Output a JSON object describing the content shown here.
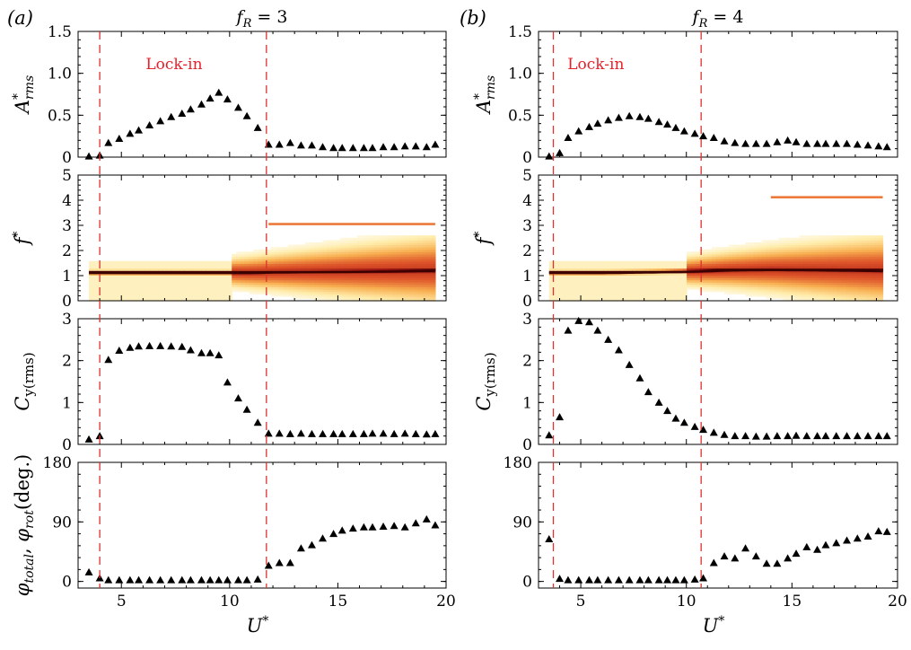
{
  "chart_data": [
    {
      "panel_label": "(a)",
      "title": "f_R = 3",
      "title_parts": {
        "var": "f",
        "sub": "R",
        "rhs": " = 3"
      },
      "xlabel": "U*",
      "xlim": [
        3,
        20
      ],
      "xticks": [
        5,
        10,
        15,
        20
      ],
      "lockin_label": "Lock-in",
      "lock_bounds": [
        4.0,
        11.7
      ],
      "line_color": "#e03030",
      "subplots": [
        {
          "type": "scatter",
          "ylabel": "A*rms",
          "ylabel_parts": {
            "base": "A",
            "sup": "*",
            "sub": "rms"
          },
          "ylim": [
            0,
            1.5
          ],
          "yticks": [
            0,
            0.5,
            1.0,
            1.5
          ],
          "ytick_labels": [
            "0",
            "0.5",
            "1.0",
            "1.5"
          ],
          "x": [
            3.5,
            4.0,
            4.4,
            4.9,
            5.4,
            5.8,
            6.3,
            6.8,
            7.3,
            7.8,
            8.2,
            8.7,
            9.1,
            9.5,
            9.9,
            10.4,
            10.8,
            11.3,
            11.8,
            12.3,
            12.8,
            13.3,
            13.8,
            14.3,
            14.8,
            15.2,
            15.7,
            16.2,
            16.6,
            17.1,
            17.6,
            18.1,
            18.6,
            19.1,
            19.5
          ],
          "y": [
            0.01,
            0.02,
            0.17,
            0.22,
            0.28,
            0.32,
            0.38,
            0.43,
            0.48,
            0.52,
            0.57,
            0.63,
            0.7,
            0.77,
            0.69,
            0.59,
            0.49,
            0.35,
            0.15,
            0.15,
            0.17,
            0.14,
            0.14,
            0.12,
            0.11,
            0.11,
            0.11,
            0.11,
            0.11,
            0.12,
            0.12,
            0.13,
            0.13,
            0.12,
            0.15
          ]
        },
        {
          "type": "heatmap",
          "ylabel": "f*",
          "ylabel_parts": {
            "base": "f",
            "sup": "*"
          },
          "ylim": [
            0,
            5
          ],
          "yticks": [
            0,
            1,
            2,
            3,
            4,
            5
          ],
          "ytick_labels": [
            "0",
            "1",
            "2",
            "3",
            "4",
            "5"
          ],
          "x_start": 3.5,
          "x_end": 19.5,
          "fundamental_freq": [
            1.1,
            1.1,
            1.1,
            1.1,
            1.1,
            1.12,
            1.18
          ],
          "fundamental_x": [
            3.5,
            6,
            9,
            10,
            11,
            12,
            19.5
          ],
          "harmonic_freq": 3.05,
          "harmonic_x": [
            11.8,
            19.5
          ],
          "spread_start": 10.0
        },
        {
          "type": "scatter",
          "ylabel": "Cy(rms)",
          "ylabel_parts": {
            "base": "C",
            "sub": "y(rms)"
          },
          "ylim": [
            0,
            3
          ],
          "yticks": [
            0,
            1,
            2,
            3
          ],
          "ytick_labels": [
            "0",
            "1",
            "2",
            "3"
          ],
          "x": [
            3.5,
            4.0,
            4.4,
            4.9,
            5.4,
            5.8,
            6.3,
            6.8,
            7.3,
            7.8,
            8.2,
            8.7,
            9.1,
            9.5,
            9.9,
            10.4,
            10.8,
            11.3,
            11.8,
            12.3,
            12.8,
            13.3,
            13.8,
            14.3,
            14.8,
            15.2,
            15.7,
            16.2,
            16.6,
            17.1,
            17.6,
            18.1,
            18.6,
            19.1,
            19.5
          ],
          "y": [
            0.12,
            0.2,
            2.02,
            2.24,
            2.31,
            2.34,
            2.35,
            2.35,
            2.34,
            2.33,
            2.25,
            2.18,
            2.18,
            2.13,
            1.48,
            1.1,
            0.83,
            0.52,
            0.26,
            0.26,
            0.25,
            0.26,
            0.25,
            0.25,
            0.25,
            0.25,
            0.25,
            0.25,
            0.26,
            0.26,
            0.25,
            0.26,
            0.25,
            0.24,
            0.25
          ]
        },
        {
          "type": "scatter",
          "ylabel": "φtotal, φrot(deg.)",
          "ylabel_parts": {
            "a": "φ",
            "a_sub": "total",
            "b": "φ",
            "b_sub": "rot",
            "tail": "(deg.)"
          },
          "ylim": [
            -10,
            180
          ],
          "yticks": [
            0,
            90,
            180
          ],
          "ytick_labels": [
            "0",
            "90",
            "180"
          ],
          "x": [
            3.5,
            4.0,
            4.4,
            4.9,
            5.4,
            5.8,
            6.3,
            6.8,
            7.3,
            7.8,
            8.2,
            8.7,
            9.1,
            9.5,
            9.9,
            10.4,
            10.8,
            11.3,
            11.8,
            12.3,
            12.8,
            13.3,
            13.8,
            14.3,
            14.8,
            15.2,
            15.7,
            16.2,
            16.6,
            17.1,
            17.6,
            18.1,
            18.6,
            19.1,
            19.5
          ],
          "y": [
            14,
            5,
            2,
            2,
            2,
            2,
            2,
            2,
            2,
            2,
            2,
            2,
            2,
            2,
            2,
            2,
            2,
            3,
            24,
            28,
            28,
            50,
            55,
            65,
            72,
            77,
            80,
            82,
            82,
            83,
            84,
            82,
            88,
            94,
            85
          ]
        }
      ]
    },
    {
      "panel_label": "(b)",
      "title": "f_R = 4",
      "title_parts": {
        "var": "f",
        "sub": "R",
        "rhs": " = 4"
      },
      "xlabel": "U*",
      "xlim": [
        3,
        20
      ],
      "xticks": [
        5,
        10,
        15,
        20
      ],
      "lockin_label": "Lock-in",
      "lock_bounds": [
        3.7,
        10.7
      ],
      "line_color": "#e03030",
      "subplots": [
        {
          "type": "scatter",
          "ylabel": "A*rms",
          "ylabel_parts": {
            "base": "A",
            "sup": "*",
            "sub": "rms"
          },
          "ylim": [
            0,
            1.5
          ],
          "yticks": [
            0,
            0.5,
            1.0,
            1.5
          ],
          "ytick_labels": [
            "0",
            "0.5",
            "1.0",
            "1.5"
          ],
          "x": [
            3.5,
            4.0,
            4.4,
            4.9,
            5.4,
            5.8,
            6.3,
            6.8,
            7.3,
            7.8,
            8.2,
            8.7,
            9.1,
            9.5,
            9.9,
            10.4,
            10.8,
            11.3,
            11.8,
            12.3,
            12.8,
            13.3,
            13.8,
            14.3,
            14.8,
            15.2,
            15.7,
            16.2,
            16.6,
            17.1,
            17.6,
            18.1,
            18.6,
            19.1,
            19.5
          ],
          "y": [
            0.01,
            0.05,
            0.23,
            0.31,
            0.36,
            0.4,
            0.44,
            0.47,
            0.49,
            0.48,
            0.46,
            0.42,
            0.39,
            0.35,
            0.31,
            0.28,
            0.25,
            0.23,
            0.19,
            0.17,
            0.16,
            0.16,
            0.16,
            0.18,
            0.2,
            0.18,
            0.16,
            0.16,
            0.16,
            0.16,
            0.16,
            0.15,
            0.14,
            0.13,
            0.12
          ]
        },
        {
          "type": "heatmap",
          "ylabel": "f*",
          "ylabel_parts": {
            "base": "f",
            "sup": "*"
          },
          "ylim": [
            0,
            5
          ],
          "yticks": [
            0,
            1,
            2,
            3,
            4,
            5
          ],
          "ytick_labels": [
            "0",
            "1",
            "2",
            "3",
            "4",
            "5"
          ],
          "x_start": 3.5,
          "x_end": 19.3,
          "fundamental_freq": [
            1.1,
            1.1,
            1.12,
            1.15,
            1.2,
            1.22,
            1.2,
            1.18
          ],
          "fundamental_x": [
            3.5,
            6,
            8,
            10,
            12,
            14,
            17,
            19.3
          ],
          "harmonic_freq": 4.12,
          "harmonic_x": [
            14.0,
            19.3
          ],
          "spread_start": 10.0
        },
        {
          "type": "scatter",
          "ylabel": "Cy(rms)",
          "ylabel_parts": {
            "base": "C",
            "sub": "y(rms)"
          },
          "ylim": [
            0,
            3
          ],
          "yticks": [
            0,
            1,
            2,
            3
          ],
          "ytick_labels": [
            "0",
            "1",
            "2",
            "3"
          ],
          "x": [
            3.5,
            4.0,
            4.4,
            4.9,
            5.4,
            5.8,
            6.3,
            6.8,
            7.3,
            7.8,
            8.2,
            8.7,
            9.1,
            9.5,
            9.9,
            10.4,
            10.8,
            11.3,
            11.8,
            12.3,
            12.8,
            13.3,
            13.8,
            14.3,
            14.8,
            15.2,
            15.7,
            16.2,
            16.6,
            17.1,
            17.6,
            18.1,
            18.6,
            19.1,
            19.5
          ],
          "y": [
            0.22,
            0.65,
            2.72,
            2.95,
            2.92,
            2.72,
            2.5,
            2.25,
            1.9,
            1.58,
            1.25,
            1.0,
            0.8,
            0.62,
            0.52,
            0.42,
            0.35,
            0.28,
            0.23,
            0.2,
            0.2,
            0.19,
            0.19,
            0.2,
            0.2,
            0.21,
            0.2,
            0.2,
            0.2,
            0.2,
            0.2,
            0.2,
            0.2,
            0.2,
            0.2
          ]
        },
        {
          "type": "scatter",
          "ylabel": "",
          "ylim": [
            -10,
            180
          ],
          "yticks": [
            0,
            90,
            180
          ],
          "ytick_labels": [
            "0",
            "90",
            "180"
          ],
          "x": [
            3.5,
            4.0,
            4.4,
            4.9,
            5.4,
            5.8,
            6.3,
            6.8,
            7.3,
            7.8,
            8.2,
            8.7,
            9.1,
            9.5,
            9.9,
            10.4,
            10.8,
            11.3,
            11.8,
            12.3,
            12.8,
            13.3,
            13.8,
            14.3,
            14.8,
            15.2,
            15.7,
            16.2,
            16.6,
            17.1,
            17.6,
            18.1,
            18.6,
            19.1,
            19.5
          ],
          "y": [
            64,
            4,
            2,
            2,
            2,
            2,
            2,
            2,
            2,
            2,
            2,
            2,
            2,
            2,
            2,
            3,
            5,
            28,
            38,
            35,
            50,
            38,
            27,
            27,
            35,
            42,
            52,
            48,
            55,
            58,
            62,
            65,
            68,
            76,
            75
          ]
        }
      ]
    }
  ]
}
